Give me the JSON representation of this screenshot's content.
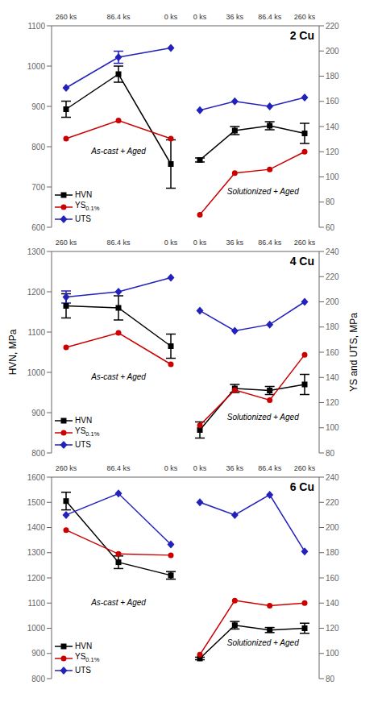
{
  "chart_data": [
    {
      "type": "line",
      "categories": [
        "260 ks",
        "86.4 ks",
        "0 ks"
      ],
      "ylim": [
        600,
        1100
      ],
      "yticks": [
        600,
        700,
        800,
        900,
        1000,
        1100
      ],
      "legend": "lower left",
      "annotations": [
        "As-cast + Aged"
      ],
      "series": [
        {
          "name": "HVN",
          "color": "#000000",
          "marker": "square",
          "values": [
            893,
            980,
            757
          ],
          "errors": [
            20,
            20,
            60
          ]
        },
        {
          "name": "YS0.1%",
          "color": "#cc0000",
          "marker": "circle",
          "values": [
            820,
            865,
            820
          ],
          "errors": [
            0,
            0,
            0
          ]
        },
        {
          "name": "UTS",
          "color": "#2222bb",
          "marker": "diamond",
          "values": [
            946,
            1022,
            1045
          ],
          "errors": [
            0,
            15,
            0
          ]
        }
      ]
    },
    {
      "type": "line",
      "title": "2 Cu",
      "categories": [
        "0 ks",
        "36 ks",
        "86.4 ks",
        "260 ks"
      ],
      "ylim": [
        600,
        1100
      ],
      "yticks": [],
      "y2lim": [
        60,
        220
      ],
      "y2ticks": [
        60,
        80,
        100,
        120,
        140,
        160,
        180,
        200,
        220
      ],
      "annotations": [
        "Solutionized + Aged"
      ],
      "series": [
        {
          "name": "HVN",
          "color": "#000000",
          "marker": "square",
          "axis": "y",
          "values": [
            767,
            840,
            852,
            833
          ],
          "errors": [
            5,
            10,
            10,
            25
          ]
        },
        {
          "name": "YS0.1%",
          "color": "#cc0000",
          "marker": "circle",
          "axis": "y2",
          "values": [
            70,
            103,
            106,
            120
          ],
          "errors": [
            0,
            0,
            0,
            0
          ]
        },
        {
          "name": "UTS",
          "color": "#2222bb",
          "marker": "diamond",
          "axis": "y2",
          "values": [
            153,
            160,
            156,
            163
          ],
          "errors": [
            0,
            0,
            0,
            0
          ]
        }
      ]
    },
    {
      "type": "line",
      "categories": [
        "260 ks",
        "86.4 ks",
        "0 ks"
      ],
      "ylim": [
        800,
        1300
      ],
      "yticks": [
        800,
        900,
        1000,
        1100,
        1200,
        1300
      ],
      "legend": "lower left",
      "annotations": [
        "As-cast + Aged"
      ],
      "ylabel": "HVN, MPa",
      "series": [
        {
          "name": "HVN",
          "color": "#000000",
          "marker": "square",
          "values": [
            1165,
            1160,
            1065
          ],
          "errors": [
            30,
            30,
            30
          ]
        },
        {
          "name": "YS0.1%",
          "color": "#cc0000",
          "marker": "circle",
          "values": [
            1062,
            1098,
            1020
          ],
          "errors": [
            0,
            0,
            0
          ]
        },
        {
          "name": "UTS",
          "color": "#2222bb",
          "marker": "diamond",
          "values": [
            1187,
            1200,
            1235
          ],
          "errors": [
            15,
            0,
            0
          ]
        }
      ]
    },
    {
      "type": "line",
      "title": "4 Cu",
      "categories": [
        "0 ks",
        "36 ks",
        "86.4 ks",
        "260 ks"
      ],
      "ylim": [
        800,
        1300
      ],
      "yticks": [],
      "y2lim": [
        80,
        240
      ],
      "y2ticks": [
        80,
        100,
        120,
        140,
        160,
        180,
        200,
        220,
        240
      ],
      "annotations": [
        "Solutionized + Aged"
      ],
      "y2label": "YS and UTS, MPa",
      "series": [
        {
          "name": "HVN",
          "color": "#000000",
          "marker": "square",
          "axis": "y",
          "values": [
            857,
            960,
            955,
            970
          ],
          "errors": [
            20,
            10,
            10,
            25
          ]
        },
        {
          "name": "YS0.1%",
          "color": "#cc0000",
          "marker": "circle",
          "axis": "y2",
          "values": [
            102,
            130,
            122,
            158
          ],
          "errors": [
            0,
            0,
            0,
            0
          ]
        },
        {
          "name": "UTS",
          "color": "#2222bb",
          "marker": "diamond",
          "axis": "y2",
          "values": [
            193,
            177,
            182,
            200
          ],
          "errors": [
            0,
            0,
            0,
            0
          ]
        }
      ]
    },
    {
      "type": "line",
      "categories": [
        "260 ks",
        "86.4 ks",
        "0 ks"
      ],
      "ylim": [
        800,
        1600
      ],
      "yticks": [
        800,
        900,
        1000,
        1100,
        1200,
        1300,
        1400,
        1500,
        1600
      ],
      "legend": "lower left",
      "annotations": [
        "As-cast + Aged"
      ],
      "series": [
        {
          "name": "HVN",
          "color": "#000000",
          "marker": "square",
          "values": [
            1505,
            1262,
            1210
          ],
          "errors": [
            35,
            25,
            15
          ]
        },
        {
          "name": "YS0.1%",
          "color": "#cc0000",
          "marker": "circle",
          "values": [
            1390,
            1295,
            1290
          ],
          "errors": [
            0,
            0,
            0
          ]
        },
        {
          "name": "UTS",
          "color": "#2222bb",
          "marker": "diamond",
          "values": [
            1450,
            1535,
            1333
          ],
          "errors": [
            0,
            0,
            0
          ]
        }
      ]
    },
    {
      "type": "line",
      "title": "6 Cu",
      "categories": [
        "0 ks",
        "36 ks",
        "86.4 ks",
        "260 ks"
      ],
      "ylim": [
        800,
        1600
      ],
      "yticks": [],
      "y2lim": [
        80,
        240
      ],
      "y2ticks": [
        80,
        100,
        120,
        140,
        160,
        180,
        200,
        220,
        240
      ],
      "annotations": [
        "Solutionized + Aged"
      ],
      "series": [
        {
          "name": "HVN",
          "color": "#000000",
          "marker": "square",
          "axis": "y",
          "values": [
            880,
            1012,
            993,
            1000
          ],
          "errors": [
            5,
            15,
            10,
            20
          ]
        },
        {
          "name": "YS0.1%",
          "color": "#cc0000",
          "marker": "circle",
          "axis": "y2",
          "values": [
            99,
            142,
            138,
            140
          ],
          "errors": [
            0,
            0,
            0,
            0
          ]
        },
        {
          "name": "UTS",
          "color": "#2222bb",
          "marker": "diamond",
          "axis": "y2",
          "values": [
            220,
            210,
            226,
            181
          ],
          "errors": [
            0,
            0,
            0,
            0
          ]
        }
      ]
    }
  ]
}
